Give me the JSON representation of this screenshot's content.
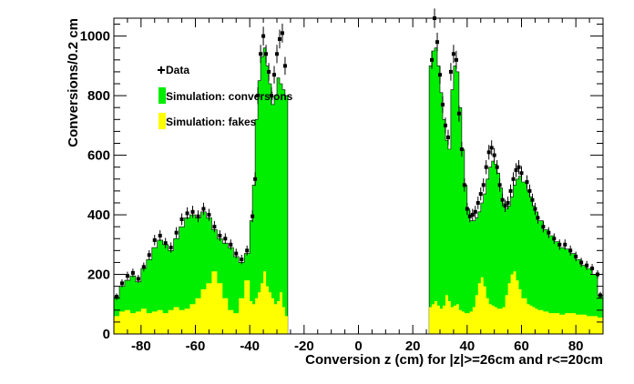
{
  "chart_data": {
    "type": "area",
    "xlabel": "Conversion z (cm) for |z|>=26cm and r<=20cm",
    "ylabel": "Conversions/0.2 cm",
    "xlim": [
      -90,
      90
    ],
    "ylim": [
      0,
      1060
    ],
    "x_ticks": [
      -80,
      -60,
      -40,
      -20,
      0,
      20,
      40,
      60,
      80
    ],
    "y_ticks": [
      0,
      200,
      400,
      600,
      800,
      1000
    ],
    "legend_position": "top-left",
    "series": [
      {
        "name": "Data",
        "kind": "points",
        "color": "#000000",
        "points": [
          [
            -89,
            125
          ],
          [
            -87,
            170
          ],
          [
            -85,
            195
          ],
          [
            -83,
            205
          ],
          [
            -81,
            185
          ],
          [
            -79,
            225
          ],
          [
            -77,
            265
          ],
          [
            -75,
            315
          ],
          [
            -73,
            330
          ],
          [
            -71,
            305
          ],
          [
            -69,
            290
          ],
          [
            -67,
            340
          ],
          [
            -65,
            385
          ],
          [
            -63,
            405
          ],
          [
            -61,
            410
          ],
          [
            -59,
            395
          ],
          [
            -57,
            420
          ],
          [
            -55,
            400
          ],
          [
            -53,
            360
          ],
          [
            -51,
            330
          ],
          [
            -49,
            320
          ],
          [
            -47,
            300
          ],
          [
            -45,
            270
          ],
          [
            -43,
            250
          ],
          [
            -41,
            280
          ],
          [
            -39,
            395
          ],
          [
            -38,
            520
          ],
          [
            -37,
            800
          ],
          [
            -36,
            940
          ],
          [
            -35,
            1000
          ],
          [
            -34,
            940
          ],
          [
            -33,
            880
          ],
          [
            -32,
            800
          ],
          [
            -31,
            870
          ],
          [
            -30,
            940
          ],
          [
            -29,
            990
          ],
          [
            -28,
            1010
          ],
          [
            -27,
            900
          ],
          [
            27,
            920
          ],
          [
            28,
            1060
          ],
          [
            29,
            980
          ],
          [
            30,
            870
          ],
          [
            31,
            770
          ],
          [
            32,
            700
          ],
          [
            33,
            660
          ],
          [
            34,
            880
          ],
          [
            35,
            940
          ],
          [
            36,
            920
          ],
          [
            37,
            740
          ],
          [
            38,
            620
          ],
          [
            39,
            500
          ],
          [
            40,
            420
          ],
          [
            41,
            395
          ],
          [
            42,
            400
          ],
          [
            43,
            410
          ],
          [
            44,
            440
          ],
          [
            45,
            470
          ],
          [
            46,
            500
          ],
          [
            47,
            560
          ],
          [
            48,
            610
          ],
          [
            49,
            625
          ],
          [
            50,
            600
          ],
          [
            51,
            560
          ],
          [
            52,
            500
          ],
          [
            53,
            450
          ],
          [
            54,
            430
          ],
          [
            55,
            440
          ],
          [
            56,
            480
          ],
          [
            57,
            520
          ],
          [
            58,
            550
          ],
          [
            59,
            560
          ],
          [
            60,
            540
          ],
          [
            62,
            510
          ],
          [
            63,
            480
          ],
          [
            64,
            450
          ],
          [
            65,
            420
          ],
          [
            66,
            390
          ],
          [
            68,
            360
          ],
          [
            70,
            340
          ],
          [
            72,
            320
          ],
          [
            74,
            300
          ],
          [
            76,
            300
          ],
          [
            78,
            280
          ],
          [
            80,
            260
          ],
          [
            82,
            240
          ],
          [
            84,
            230
          ],
          [
            86,
            220
          ],
          [
            88,
            200
          ],
          [
            89,
            130
          ]
        ]
      },
      {
        "name": "Simulation: conversions",
        "kind": "histogram",
        "color": "#00ee00",
        "points": [
          [
            -90,
            125
          ],
          [
            -88,
            160
          ],
          [
            -86,
            180
          ],
          [
            -84,
            195
          ],
          [
            -82,
            175
          ],
          [
            -80,
            220
          ],
          [
            -78,
            250
          ],
          [
            -76,
            290
          ],
          [
            -74,
            315
          ],
          [
            -72,
            300
          ],
          [
            -70,
            280
          ],
          [
            -68,
            320
          ],
          [
            -66,
            360
          ],
          [
            -64,
            390
          ],
          [
            -62,
            400
          ],
          [
            -60,
            390
          ],
          [
            -58,
            410
          ],
          [
            -56,
            390
          ],
          [
            -54,
            350
          ],
          [
            -52,
            320
          ],
          [
            -50,
            305
          ],
          [
            -48,
            290
          ],
          [
            -46,
            260
          ],
          [
            -44,
            240
          ],
          [
            -42,
            270
          ],
          [
            -40,
            380
          ],
          [
            -39,
            500
          ],
          [
            -38,
            720
          ],
          [
            -37,
            850
          ],
          [
            -36,
            930
          ],
          [
            -35,
            960
          ],
          [
            -34,
            900
          ],
          [
            -33,
            840
          ],
          [
            -32,
            770
          ],
          [
            -31,
            800
          ],
          [
            -30,
            860
          ],
          [
            -29,
            840
          ],
          [
            -28,
            820
          ],
          [
            -27,
            800
          ],
          [
            -26,
            0
          ],
          [
            26,
            900
          ],
          [
            27,
            950
          ],
          [
            28,
            960
          ],
          [
            29,
            900
          ],
          [
            30,
            810
          ],
          [
            31,
            720
          ],
          [
            32,
            650
          ],
          [
            33,
            620
          ],
          [
            34,
            820
          ],
          [
            35,
            900
          ],
          [
            36,
            880
          ],
          [
            37,
            760
          ],
          [
            38,
            620
          ],
          [
            39,
            500
          ],
          [
            40,
            420
          ],
          [
            41,
            380
          ],
          [
            42,
            380
          ],
          [
            43,
            390
          ],
          [
            44,
            410
          ],
          [
            45,
            440
          ],
          [
            46,
            470
          ],
          [
            47,
            520
          ],
          [
            48,
            560
          ],
          [
            49,
            580
          ],
          [
            50,
            570
          ],
          [
            51,
            540
          ],
          [
            52,
            490
          ],
          [
            53,
            440
          ],
          [
            54,
            420
          ],
          [
            55,
            430
          ],
          [
            56,
            460
          ],
          [
            57,
            500
          ],
          [
            58,
            520
          ],
          [
            59,
            530
          ],
          [
            60,
            510
          ],
          [
            62,
            480
          ],
          [
            63,
            460
          ],
          [
            64,
            430
          ],
          [
            65,
            410
          ],
          [
            66,
            380
          ],
          [
            68,
            350
          ],
          [
            70,
            330
          ],
          [
            72,
            310
          ],
          [
            74,
            290
          ],
          [
            76,
            285
          ],
          [
            78,
            270
          ],
          [
            80,
            250
          ],
          [
            82,
            230
          ],
          [
            84,
            220
          ],
          [
            86,
            200
          ],
          [
            88,
            130
          ],
          [
            90,
            130
          ]
        ]
      },
      {
        "name": "Simulation: fakes",
        "kind": "histogram",
        "color": "#ffff00",
        "points": [
          [
            -90,
            60
          ],
          [
            -88,
            75
          ],
          [
            -86,
            80
          ],
          [
            -84,
            70
          ],
          [
            -82,
            75
          ],
          [
            -80,
            85
          ],
          [
            -78,
            70
          ],
          [
            -76,
            75
          ],
          [
            -74,
            80
          ],
          [
            -72,
            70
          ],
          [
            -70,
            80
          ],
          [
            -68,
            90
          ],
          [
            -66,
            80
          ],
          [
            -64,
            85
          ],
          [
            -62,
            100
          ],
          [
            -60,
            120
          ],
          [
            -58,
            150
          ],
          [
            -56,
            170
          ],
          [
            -54,
            210
          ],
          [
            -52,
            170
          ],
          [
            -50,
            120
          ],
          [
            -48,
            80
          ],
          [
            -46,
            70
          ],
          [
            -44,
            120
          ],
          [
            -42,
            180
          ],
          [
            -40,
            110
          ],
          [
            -39,
            100
          ],
          [
            -38,
            120
          ],
          [
            -37,
            140
          ],
          [
            -36,
            170
          ],
          [
            -35,
            210
          ],
          [
            -34,
            160
          ],
          [
            -33,
            140
          ],
          [
            -32,
            120
          ],
          [
            -31,
            100
          ],
          [
            -30,
            110
          ],
          [
            -29,
            140
          ],
          [
            -28,
            90
          ],
          [
            -27,
            60
          ],
          [
            -26,
            0
          ],
          [
            26,
            90
          ],
          [
            27,
            100
          ],
          [
            28,
            110
          ],
          [
            29,
            95
          ],
          [
            30,
            85
          ],
          [
            31,
            95
          ],
          [
            32,
            130
          ],
          [
            33,
            110
          ],
          [
            34,
            90
          ],
          [
            35,
            95
          ],
          [
            36,
            100
          ],
          [
            37,
            80
          ],
          [
            38,
            75
          ],
          [
            39,
            70
          ],
          [
            40,
            70
          ],
          [
            41,
            75
          ],
          [
            42,
            90
          ],
          [
            43,
            130
          ],
          [
            44,
            170
          ],
          [
            45,
            190
          ],
          [
            46,
            160
          ],
          [
            47,
            120
          ],
          [
            48,
            100
          ],
          [
            49,
            95
          ],
          [
            50,
            90
          ],
          [
            51,
            85
          ],
          [
            52,
            85
          ],
          [
            53,
            90
          ],
          [
            54,
            130
          ],
          [
            55,
            170
          ],
          [
            56,
            200
          ],
          [
            57,
            210
          ],
          [
            58,
            180
          ],
          [
            59,
            150
          ],
          [
            60,
            120
          ],
          [
            62,
            100
          ],
          [
            63,
            95
          ],
          [
            64,
            90
          ],
          [
            65,
            85
          ],
          [
            66,
            80
          ],
          [
            68,
            75
          ],
          [
            70,
            70
          ],
          [
            72,
            70
          ],
          [
            74,
            65
          ],
          [
            76,
            70
          ],
          [
            78,
            70
          ],
          [
            80,
            65
          ],
          [
            82,
            65
          ],
          [
            84,
            60
          ],
          [
            86,
            60
          ],
          [
            88,
            55
          ],
          [
            90,
            55
          ]
        ]
      }
    ]
  }
}
